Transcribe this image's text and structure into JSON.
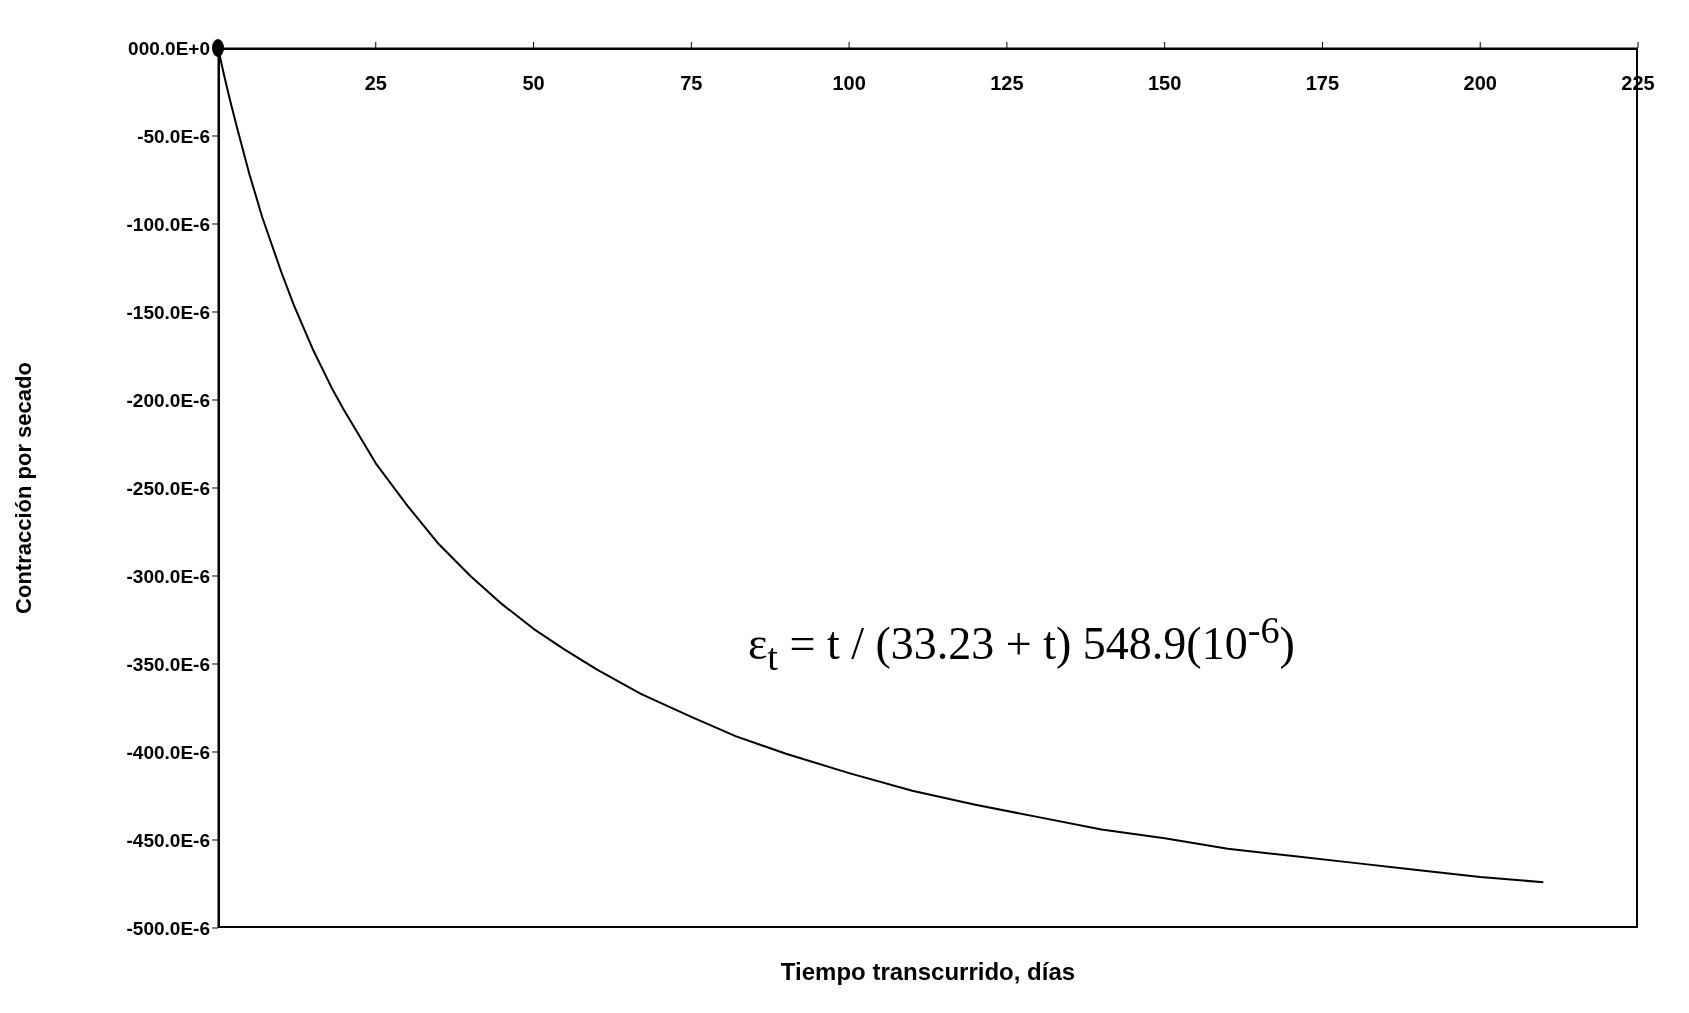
{
  "chart_data": {
    "type": "line",
    "xlabel": "Tiempo transcurrido, días",
    "ylabel": "Contracción por secado",
    "annotations": [
      "ε$_{t}$ = t / (33.23 + t) 548.9(10$^{-6}$)"
    ],
    "xlim": [
      0,
      225
    ],
    "xticks": [
      25,
      50,
      75,
      100,
      125,
      150,
      175,
      200,
      225
    ],
    "ylim": [
      -0.0005,
      0
    ],
    "yticks": [
      {
        "value": 0,
        "label": "000.0E+0"
      },
      {
        "value": -5e-05,
        "label": "-50.0E-6"
      },
      {
        "value": -0.0001,
        "label": "-100.0E-6"
      },
      {
        "value": -0.00015,
        "label": "-150.0E-6"
      },
      {
        "value": -0.0002,
        "label": "-200.0E-6"
      },
      {
        "value": -0.00025,
        "label": "-250.0E-6"
      },
      {
        "value": -0.0003,
        "label": "-300.0E-6"
      },
      {
        "value": -0.00035,
        "label": "-350.0E-6"
      },
      {
        "value": -0.0004,
        "label": "-400.0E-6"
      },
      {
        "value": -0.00045,
        "label": "-450.0E-6"
      },
      {
        "value": -0.0005,
        "label": "-500.0E-6"
      }
    ],
    "grid": false,
    "series": [
      {
        "color": "#000000",
        "x": [
          0,
          1,
          2,
          3,
          5,
          7,
          10,
          12,
          15,
          18,
          20,
          25,
          30,
          35,
          40,
          45,
          50,
          55,
          60,
          67,
          75,
          82,
          90,
          100,
          110,
          120,
          130,
          140,
          150,
          160,
          170,
          180,
          190,
          200,
          210
        ],
        "values": [
          0,
          -1.6e-05,
          -3.1e-05,
          -4.5e-05,
          -7.2e-05,
          -9.6e-05,
          -0.000127,
          -0.000146,
          -0.000171,
          -0.000193,
          -0.000206,
          -0.000236,
          -0.00026,
          -0.000282,
          -0.0003,
          -0.000316,
          -0.00033,
          -0.000342,
          -0.000353,
          -0.000367,
          -0.00038,
          -0.000391,
          -0.000401,
          -0.000412,
          -0.000422,
          -0.00043,
          -0.000437,
          -0.000444,
          -0.000449,
          -0.000455,
          -0.000459,
          -0.000463,
          -0.000467,
          -0.000471,
          -0.000474
        ]
      },
      {
        "type": "scatter",
        "color": "#000000",
        "x": [
          0
        ],
        "values": [
          0
        ]
      }
    ]
  }
}
